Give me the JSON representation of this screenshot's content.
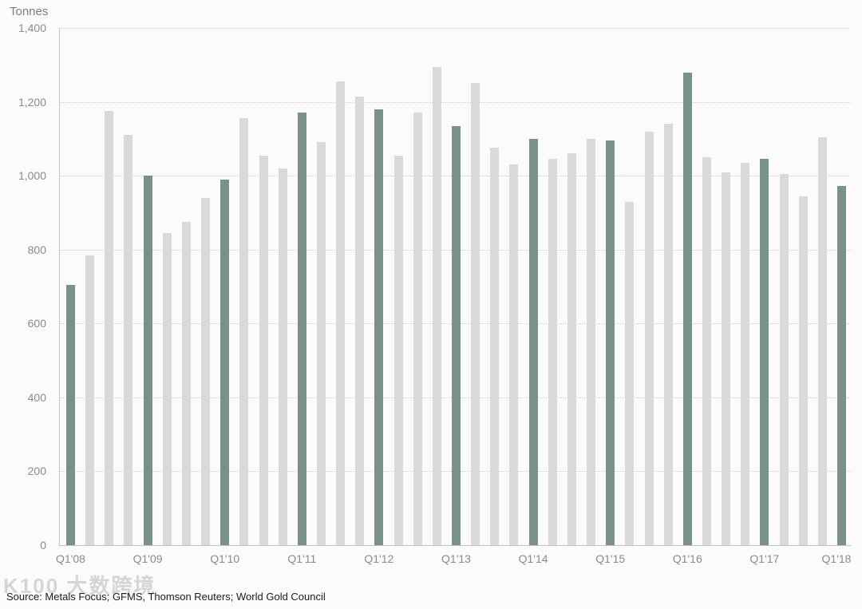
{
  "chart_data": {
    "type": "bar",
    "unit_label": "Tonnes",
    "categories": [
      "Q1'08",
      "Q2'08",
      "Q3'08",
      "Q4'08",
      "Q1'09",
      "Q2'09",
      "Q3'09",
      "Q4'09",
      "Q1'10",
      "Q2'10",
      "Q3'10",
      "Q4'10",
      "Q1'11",
      "Q2'11",
      "Q3'11",
      "Q4'11",
      "Q1'12",
      "Q2'12",
      "Q3'12",
      "Q4'12",
      "Q1'13",
      "Q2'13",
      "Q3'13",
      "Q4'13",
      "Q1'14",
      "Q2'14",
      "Q3'14",
      "Q4'14",
      "Q1'15",
      "Q2'15",
      "Q3'15",
      "Q4'15",
      "Q1'16",
      "Q2'16",
      "Q3'16",
      "Q4'16",
      "Q1'17",
      "Q2'17",
      "Q3'17",
      "Q4'17",
      "Q1'18"
    ],
    "values": [
      705,
      785,
      1175,
      1110,
      1000,
      845,
      875,
      940,
      990,
      1155,
      1055,
      1020,
      1170,
      1090,
      1255,
      1215,
      1180,
      1055,
      1170,
      1295,
      1135,
      1250,
      1075,
      1030,
      1100,
      1045,
      1060,
      1100,
      1095,
      930,
      1120,
      1140,
      1280,
      1050,
      1010,
      1035,
      1045,
      1005,
      945,
      1105,
      973
    ],
    "highlight_indices": [
      0,
      4,
      8,
      12,
      16,
      20,
      24,
      28,
      32,
      36,
      40
    ],
    "x_tick_labels": [
      "Q1'08",
      "Q1'09",
      "Q1'10",
      "Q1'11",
      "Q1'12",
      "Q1'13",
      "Q1'14",
      "Q1'15",
      "Q1'16",
      "Q1'17",
      "Q1'18"
    ],
    "y_ticks": [
      0,
      200,
      400,
      600,
      800,
      1000,
      1200,
      1400
    ],
    "y_tick_labels": [
      "0",
      "200",
      "400",
      "600",
      "800",
      "1,000",
      "1,200",
      "1,400"
    ],
    "ylim": [
      0,
      1400
    ],
    "grid": "horizontal-dotted",
    "legend": "none",
    "colors": {
      "bar": "#d9d9d9",
      "highlight": "#7a918a",
      "background": "#fbfbfa",
      "gridline": "#cfcfcf",
      "axis": "#c9c9c9",
      "tick_text": "#8b8b8b"
    }
  },
  "source": "Source: Metals Focus; GFMS, Thomson Reuters; World Gold Council",
  "watermark": "K100 大数跨境"
}
